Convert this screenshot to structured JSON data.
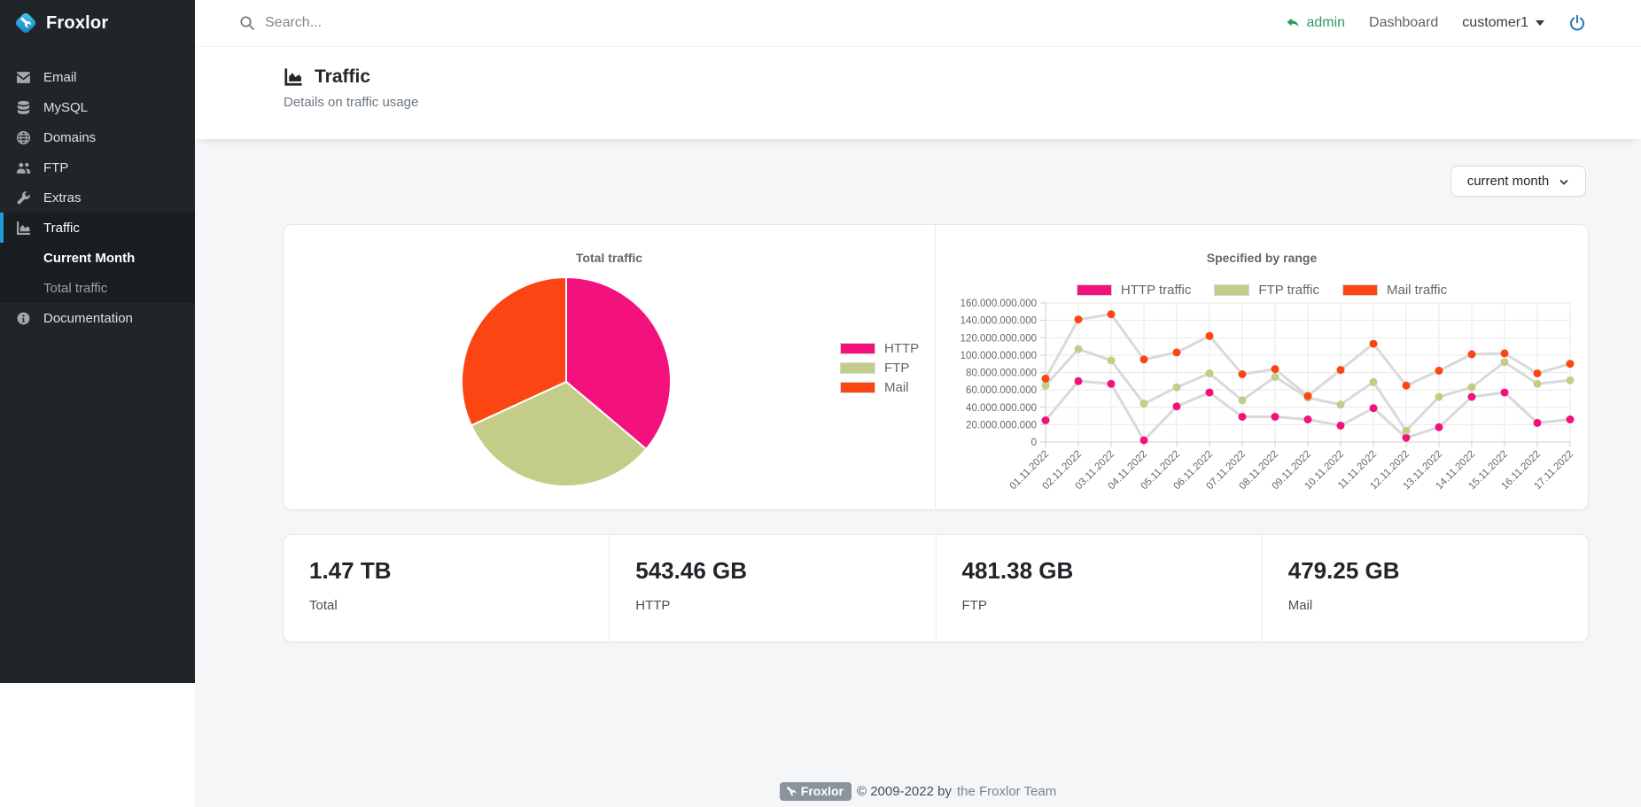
{
  "brand": {
    "name": "Froxlor"
  },
  "topbar": {
    "search_placeholder": "Search...",
    "admin_label": "admin",
    "dashboard_label": "Dashboard",
    "customer_label": "customer1"
  },
  "sidebar": {
    "items": [
      {
        "id": "email",
        "label": "Email",
        "icon": "email-icon"
      },
      {
        "id": "mysql",
        "label": "MySQL",
        "icon": "database-icon"
      },
      {
        "id": "domains",
        "label": "Domains",
        "icon": "globe-icon"
      },
      {
        "id": "ftp",
        "label": "FTP",
        "icon": "users-icon"
      },
      {
        "id": "extras",
        "label": "Extras",
        "icon": "wrench-icon"
      },
      {
        "id": "traffic",
        "label": "Traffic",
        "icon": "chart-icon",
        "active": true,
        "children": [
          {
            "id": "current-month",
            "label": "Current Month",
            "active": true
          },
          {
            "id": "total-traffic",
            "label": "Total traffic",
            "active": false
          }
        ]
      },
      {
        "id": "documentation",
        "label": "Documentation",
        "icon": "info-icon"
      }
    ]
  },
  "page": {
    "title": "Traffic",
    "subtitle": "Details on traffic usage"
  },
  "controls": {
    "range_select": {
      "value": "current month"
    }
  },
  "colors": {
    "http": "#f3127d",
    "ftp": "#c3cd87",
    "mail": "#fb4613",
    "line": "#d9d9d9",
    "grid": "#e9e9e9",
    "axis": "#cfcfcf",
    "tick_text": "#666666",
    "accent_blue": "#1d9ed3",
    "success_green": "#2a9d5c"
  },
  "chart_data": [
    {
      "type": "pie",
      "title": "Total traffic",
      "legend_position": "right",
      "labels": [
        "HTTP",
        "FTP",
        "Mail"
      ],
      "values": [
        543.46,
        481.38,
        479.25
      ],
      "unit": "GB",
      "colors": [
        "#f3127d",
        "#c3cd87",
        "#fb4613"
      ]
    },
    {
      "type": "line",
      "title": "Specified by range",
      "legend_position": "top",
      "grid": true,
      "x": [
        "01.11.2022",
        "02.11.2022",
        "03.11.2022",
        "04.11.2022",
        "05.11.2022",
        "06.11.2022",
        "07.11.2022",
        "08.11.2022",
        "09.11.2022",
        "10.11.2022",
        "11.11.2022",
        "12.11.2022",
        "13.11.2022",
        "14.11.2022",
        "15.11.2022",
        "16.11.2022",
        "17.11.2022"
      ],
      "ylim": [
        0,
        160000000000
      ],
      "ytick_step": 20000000000,
      "series": [
        {
          "name": "HTTP traffic",
          "color": "#f3127d",
          "values": [
            25000000000,
            70000000000,
            67000000000,
            2000000000,
            41000000000,
            57000000000,
            29000000000,
            29000000000,
            26000000000,
            19000000000,
            39000000000,
            5000000000,
            17000000000,
            52000000000,
            57000000000,
            22000000000,
            26000000000
          ]
        },
        {
          "name": "FTP traffic",
          "color": "#c3cd87",
          "values": [
            65000000000,
            107000000000,
            94000000000,
            44000000000,
            63000000000,
            79000000000,
            48000000000,
            75000000000,
            51000000000,
            43000000000,
            69000000000,
            13000000000,
            52000000000,
            63000000000,
            92000000000,
            67000000000,
            71000000000
          ]
        },
        {
          "name": "Mail traffic",
          "color": "#fb4613",
          "values": [
            73000000000,
            141000000000,
            147000000000,
            95000000000,
            103000000000,
            122000000000,
            78000000000,
            84000000000,
            53000000000,
            83000000000,
            113000000000,
            65000000000,
            82000000000,
            101000000000,
            102000000000,
            79000000000,
            90000000000
          ]
        }
      ]
    }
  ],
  "stats": [
    {
      "value": "1.47 TB",
      "label": "Total"
    },
    {
      "value": "543.46 GB",
      "label": "HTTP"
    },
    {
      "value": "481.38 GB",
      "label": "FTP"
    },
    {
      "value": "479.25 GB",
      "label": "Mail"
    }
  ],
  "footer": {
    "badge": "Froxlor",
    "copyright": "© 2009-2022 by",
    "link": "the Froxlor Team"
  }
}
